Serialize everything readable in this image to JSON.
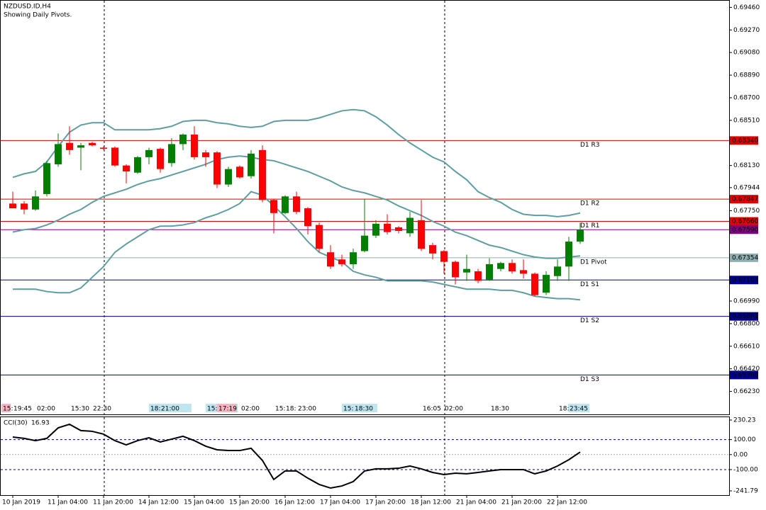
{
  "chart_data": [
    {
      "type": "candlestick",
      "title": "NZDUSD.ID,H4",
      "subtitle": "Showing Daily Pivots.",
      "categories": [
        "10 Jan 2019",
        null,
        null,
        null,
        "11 Jan 04:00",
        null,
        null,
        null,
        "11 Jan 20:00",
        null,
        null,
        null,
        "14 Jan 12:00",
        null,
        null,
        null,
        "15 Jan 04:00",
        null,
        null,
        null,
        "15 Jan 20:00",
        null,
        null,
        null,
        "16 Jan 12:00",
        null,
        null,
        null,
        "17 Jan 04:00",
        null,
        null,
        null,
        "17 Jan 20:00",
        null,
        null,
        null,
        "18 Jan 12:00",
        null,
        null,
        null,
        "21 Jan 04:00",
        null,
        null,
        null,
        "21 Jan 20:00",
        null,
        null,
        null,
        "22 Jan 12:00",
        null,
        null
      ],
      "open": [
        0.6781,
        0.6781,
        0.6776,
        0.6789,
        0.6814,
        0.6832,
        0.6828,
        0.6832,
        0.6828,
        0.6828,
        0.6813,
        0.6807,
        0.682,
        0.6827,
        0.6815,
        0.6831,
        0.6839,
        0.6824,
        0.6824,
        0.6797,
        0.6812,
        0.6804,
        0.6826,
        0.6784,
        0.6773,
        0.6787,
        0.6777,
        0.6763,
        0.674,
        0.6734,
        0.673,
        0.6741,
        0.6754,
        0.6764,
        0.6761,
        0.6756,
        0.6767,
        0.6746,
        0.6741,
        0.6732,
        0.6723,
        0.6724,
        0.6717,
        0.6726,
        0.6731,
        0.6725,
        0.6722,
        0.6706,
        0.672,
        0.6728,
        0.6749
      ],
      "high": [
        0.6791,
        0.6783,
        0.6792,
        0.6817,
        0.684,
        0.6846,
        0.6832,
        0.6833,
        0.6829,
        0.6829,
        0.6814,
        0.6821,
        0.6828,
        0.6828,
        0.6836,
        0.684,
        0.6846,
        0.6826,
        0.6825,
        0.6812,
        0.6813,
        0.6826,
        0.683,
        0.6785,
        0.6788,
        0.6791,
        0.6778,
        0.6765,
        0.6746,
        0.6738,
        0.6743,
        0.6785,
        0.6767,
        0.6772,
        0.6762,
        0.6774,
        0.6784,
        0.6748,
        0.6742,
        0.6733,
        0.6738,
        0.6726,
        0.6735,
        0.6732,
        0.6734,
        0.6734,
        0.6723,
        0.6724,
        0.6734,
        0.6753,
        0.6765
      ],
      "low": [
        0.6777,
        0.6772,
        0.6775,
        0.6787,
        0.6812,
        0.6822,
        0.6809,
        0.6829,
        0.6826,
        0.6812,
        0.6798,
        0.6806,
        0.6814,
        0.6807,
        0.6812,
        0.6826,
        0.6818,
        0.6812,
        0.6794,
        0.6795,
        0.6802,
        0.6802,
        0.6782,
        0.6756,
        0.6772,
        0.6772,
        0.6755,
        0.674,
        0.6726,
        0.6728,
        0.6726,
        0.674,
        0.6752,
        0.6755,
        0.6756,
        0.6753,
        0.6741,
        0.6734,
        0.6722,
        0.6713,
        0.6716,
        0.6714,
        0.6716,
        0.6724,
        0.6722,
        0.6718,
        0.6703,
        0.6704,
        0.6716,
        0.6716,
        0.6747
      ],
      "close": [
        0.6777,
        0.6776,
        0.6787,
        0.6815,
        0.6831,
        0.6826,
        0.683,
        0.683,
        0.6827,
        0.6813,
        0.6808,
        0.682,
        0.6826,
        0.681,
        0.6831,
        0.6839,
        0.682,
        0.682,
        0.6797,
        0.681,
        0.6803,
        0.6823,
        0.6784,
        0.6773,
        0.6787,
        0.6774,
        0.6762,
        0.6743,
        0.6728,
        0.673,
        0.674,
        0.6754,
        0.6764,
        0.6757,
        0.6758,
        0.6769,
        0.6743,
        0.6739,
        0.6732,
        0.6719,
        0.6726,
        0.6716,
        0.673,
        0.6731,
        0.6724,
        0.6722,
        0.6704,
        0.6721,
        0.6728,
        0.6749,
        0.6759
      ],
      "up_color": "#008000",
      "down_color": "#ff0000",
      "bands": {
        "color": "#5f9ea0",
        "upper": [
          0.6803,
          0.6806,
          0.6808,
          0.6816,
          0.6829,
          0.6841,
          0.6847,
          0.6849,
          0.6849,
          0.6843,
          0.6843,
          0.6843,
          0.6843,
          0.6844,
          0.6846,
          0.685,
          0.6851,
          0.6851,
          0.6849,
          0.6848,
          0.6846,
          0.6845,
          0.6846,
          0.685,
          0.6851,
          0.6851,
          0.6851,
          0.6853,
          0.6856,
          0.6859,
          0.686,
          0.6859,
          0.6854,
          0.6847,
          0.6839,
          0.6832,
          0.6826,
          0.682,
          0.6816,
          0.6808,
          0.6801,
          0.6791,
          0.6786,
          0.6782,
          0.6776,
          0.6772,
          0.6771,
          0.6771,
          0.677,
          0.6771,
          0.6773
        ],
        "middle": [
          0.6757,
          0.6759,
          0.676,
          0.6763,
          0.6767,
          0.6772,
          0.6776,
          0.6782,
          0.6787,
          0.679,
          0.6793,
          0.6797,
          0.68,
          0.6802,
          0.6805,
          0.6808,
          0.6811,
          0.6814,
          0.6818,
          0.682,
          0.6821,
          0.682,
          0.6818,
          0.6817,
          0.6814,
          0.6811,
          0.6808,
          0.6804,
          0.68,
          0.6795,
          0.6792,
          0.679,
          0.6787,
          0.6784,
          0.6779,
          0.6775,
          0.6771,
          0.6766,
          0.6762,
          0.6757,
          0.6754,
          0.675,
          0.6746,
          0.6744,
          0.6741,
          0.6738,
          0.6736,
          0.6735,
          0.6735,
          0.6736,
          0.6737
        ],
        "lower": [
          0.6709,
          0.6709,
          0.6709,
          0.6707,
          0.6706,
          0.6706,
          0.671,
          0.6719,
          0.6728,
          0.674,
          0.6747,
          0.6753,
          0.6759,
          0.6762,
          0.6762,
          0.6763,
          0.6765,
          0.6769,
          0.6772,
          0.6776,
          0.6781,
          0.6791,
          0.6788,
          0.6779,
          0.677,
          0.676,
          0.6749,
          0.674,
          0.6736,
          0.6732,
          0.6724,
          0.6721,
          0.6719,
          0.6716,
          0.6716,
          0.6716,
          0.6716,
          0.6715,
          0.6713,
          0.6711,
          0.6709,
          0.6709,
          0.6709,
          0.6708,
          0.6708,
          0.6706,
          0.6703,
          0.6702,
          0.6701,
          0.6701,
          0.67
        ]
      },
      "pivots": {
        "names": [
          "D1 R3",
          "D1 R2",
          "D1 R1",
          "D1 Pivot",
          "D1 S1",
          "D1 S2",
          "D1 S3"
        ],
        "values": [
          0.6834,
          0.67847,
          0.6766,
          0.67354,
          0.67167,
          0.66861,
          0.66368
        ],
        "value_labels": [
          "0.68340",
          "0.67847",
          "0.67660",
          "0.67354",
          "0.67167",
          "0.66861",
          "0.66368"
        ],
        "colors": [
          "#e00000",
          "#e00000",
          "#e00000",
          "#8fb0b0",
          "#00008b",
          "#00008b",
          "#00008b"
        ]
      },
      "price_line": {
        "value": 0.6759,
        "label": "0.67590",
        "color": "#800080"
      },
      "time_markers": [
        "15:",
        "19:45",
        "02:00",
        "15:30",
        "22:30",
        "18:",
        "21:00",
        "15:",
        "17:19",
        "02:00",
        "15:",
        "18:",
        "23:00",
        "15:",
        "18:30",
        "16:05",
        "02:00",
        "18:30",
        "18:",
        "23:45"
      ],
      "ylim": [
        0.6615,
        0.6951
      ],
      "yticks": [
        {
          "value": 0.6946,
          "label": "0.69460"
        },
        {
          "value": 0.6927,
          "label": "0.69270"
        },
        {
          "value": 0.6908,
          "label": "0.69080"
        },
        {
          "value": 0.6889,
          "label": "0.68890"
        },
        {
          "value": 0.687,
          "label": "0.68700"
        },
        {
          "value": 0.6851,
          "label": "0.68510"
        },
        {
          "value": 0.6813,
          "label": "0.68130"
        },
        {
          "value": 0.67944,
          "label": "0.67944"
        },
        {
          "value": 0.6775,
          "label": "0.67750"
        },
        {
          "value": 0.6699,
          "label": "0.66990"
        },
        {
          "value": 0.668,
          "label": "0.66800"
        },
        {
          "value": 0.6661,
          "label": "0.66610"
        },
        {
          "value": 0.6642,
          "label": "0.66420"
        },
        {
          "value": 0.6623,
          "label": "0.66230"
        }
      ]
    },
    {
      "type": "line",
      "label": "CCI(30)",
      "color": "#000000",
      "values": [
        117,
        108,
        93,
        108,
        178,
        202,
        160,
        155,
        136,
        93,
        65,
        93,
        112,
        84,
        103,
        122,
        93,
        56,
        32,
        27,
        27,
        42,
        -39,
        -166,
        -109,
        -109,
        -157,
        -199,
        -223,
        -209,
        -180,
        -109,
        -95,
        -95,
        -91,
        -76,
        -95,
        -119,
        -133,
        -124,
        -128,
        -119,
        -109,
        -100,
        -100,
        -100,
        -128,
        -109,
        -76,
        -34,
        16.93
      ],
      "ylim": [
        -241.79,
        230.23
      ],
      "yticks": [
        230.23,
        {
          "value": 100,
          "label": "100.00"
        },
        {
          "value": 0,
          "label": "0.00"
        },
        {
          "value": -100,
          "label": "-100.00"
        },
        -241.79
      ]
    }
  ]
}
